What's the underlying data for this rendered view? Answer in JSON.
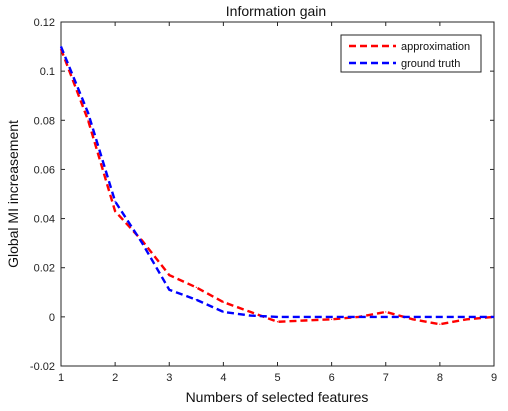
{
  "chart_data": {
    "type": "line",
    "title": "Information gain",
    "xlabel": "Numbers of selected features",
    "ylabel": "Global MI increasement",
    "xlim": [
      1,
      9
    ],
    "ylim": [
      -0.02,
      0.12
    ],
    "xticks": [
      "1",
      "2",
      "3",
      "4",
      "5",
      "6",
      "7",
      "8",
      "9"
    ],
    "yticks": [
      "-0.02",
      "0",
      "0.02",
      "0.04",
      "0.06",
      "0.08",
      "0.1",
      "0.12"
    ],
    "grid": false,
    "legend_position": "top-right",
    "series": [
      {
        "name": "approximation",
        "color": "#ff0000",
        "line_style": "dashed",
        "x": [
          1,
          1.5,
          2,
          2.5,
          3,
          3.5,
          4,
          4.5,
          5,
          5.5,
          6,
          6.5,
          7,
          7.5,
          8,
          8.5,
          9
        ],
        "y": [
          0.109,
          0.08,
          0.043,
          0.031,
          0.017,
          0.012,
          0.006,
          0.002,
          -0.002,
          -0.0015,
          -0.001,
          0.0,
          0.002,
          -0.001,
          -0.003,
          -0.001,
          0.0
        ]
      },
      {
        "name": "ground truth",
        "color": "#0000ff",
        "line_style": "dashed",
        "x": [
          1,
          1.5,
          2,
          2.5,
          3,
          3.5,
          4,
          4.5,
          5,
          6,
          7,
          8,
          9
        ],
        "y": [
          0.11,
          0.083,
          0.047,
          0.03,
          0.011,
          0.007,
          0.002,
          0.0005,
          0.0,
          0.0,
          0.0,
          0.0,
          0.0
        ]
      }
    ]
  }
}
